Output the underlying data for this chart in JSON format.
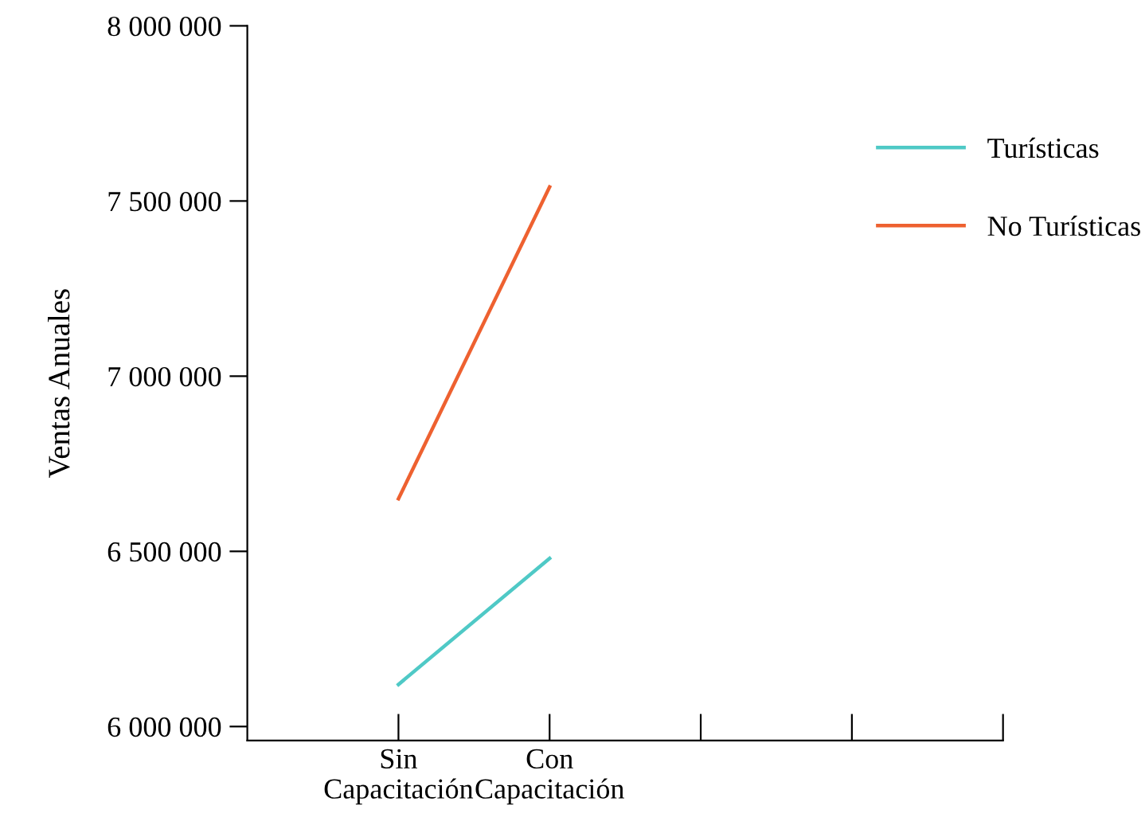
{
  "chart_data": {
    "type": "line",
    "ylabel": "Ventas Anuales",
    "categories": [
      "Sin\nCapacitación",
      "Con\nCapacitación",
      null,
      null,
      null
    ],
    "series": [
      {
        "name": "Turísticas",
        "color": "#4fc9c6",
        "values": [
          6120000,
          6480000,
          null,
          null,
          null
        ]
      },
      {
        "name": "No Turísticas",
        "color": "#ee6130",
        "values": [
          6650000,
          7540000,
          null,
          null,
          null
        ]
      }
    ],
    "ylim": [
      5960000,
      8000000
    ],
    "yticks": [
      {
        "value": 6000000,
        "label": "6 000 000"
      },
      {
        "value": 6500000,
        "label": "6 500 000"
      },
      {
        "value": 7000000,
        "label": "7 000 000"
      },
      {
        "value": 7500000,
        "label": "7 500 000"
      },
      {
        "value": 8000000,
        "label": "8 000 000"
      }
    ],
    "grid": false,
    "legend": "right",
    "marker": "none",
    "line_style": "solid"
  }
}
